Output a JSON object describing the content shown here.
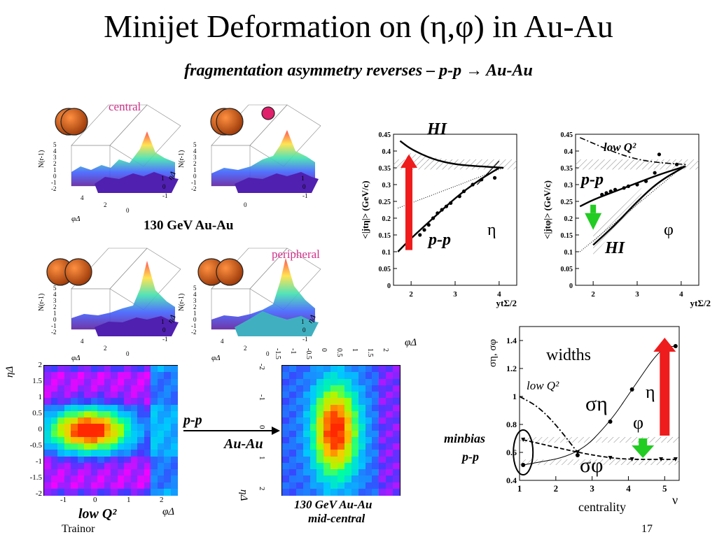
{
  "slide": {
    "title": "Minijet Deformation on (η,φ) in Au-Au",
    "subtitle": "fragmentation asymmetry reverses – p-p → Au-Au",
    "footer_left": "Trainor",
    "page_number": "17"
  },
  "surface_plots": {
    "central_tag": "central",
    "peripheral_tag": "peripheral",
    "caption": "130 GeV Au-Au",
    "z_label": "N(r-1)",
    "z_ticks": [
      "5",
      "4",
      "3",
      "2",
      "1",
      "0",
      "-1",
      "-2"
    ],
    "phi_ticks": [
      "4",
      "2",
      "0"
    ],
    "eta_ticks": [
      "1",
      "0",
      "-1"
    ],
    "phi_label": "φΔ",
    "eta_label": "ηΔ",
    "colors": {
      "central_tag": "#d0308a",
      "nucleus": "#c85010",
      "pink_dot": "#e0206a"
    }
  },
  "color_maps": {
    "left": {
      "y_label": "ηΔ",
      "x_label": "φΔ",
      "y_ticks": [
        "2",
        "1.5",
        "1",
        "0.5",
        "0",
        "-0.5",
        "-1",
        "-1.5",
        "-2"
      ],
      "x_ticks": [
        "-1",
        "0",
        "1",
        "2"
      ],
      "caption": "low Q²"
    },
    "right": {
      "x_label": "φΔ",
      "y_label": "ηΔ",
      "phi_ticks": [
        "-1.5",
        "-1",
        "-0.5",
        "0",
        "0.5",
        "1",
        "1.5",
        "2"
      ],
      "eta_ticks": [
        "-2",
        "-1",
        "0",
        "1",
        "2"
      ],
      "caption_line1": "130 GeV Au-Au",
      "caption_line2": "mid-central"
    },
    "arrow_top": "p-p",
    "arrow_bottom": "Au-Au"
  },
  "chart_data": [
    {
      "type": "line",
      "name": "eta-panel",
      "ylabel": "<|jtη|> (GeV/c)",
      "xlabel": "ytΣ/2",
      "xlim": [
        1.6,
        4.4
      ],
      "ylim": [
        0,
        0.45
      ],
      "x_ticks": [
        2,
        3,
        4
      ],
      "y_ticks": [
        0,
        0.05,
        0.1,
        0.15,
        0.2,
        0.25,
        0.3,
        0.35,
        0.4,
        0.45
      ],
      "annotations": [
        "HI",
        "p-p",
        "η"
      ],
      "points": {
        "x": [
          2.2,
          2.3,
          2.4,
          2.5,
          2.6,
          2.7,
          2.8,
          2.9,
          3.1,
          3.2,
          3.4,
          3.6,
          3.9
        ],
        "y": [
          0.15,
          0.165,
          0.18,
          0.2,
          0.215,
          0.225,
          0.235,
          0.245,
          0.265,
          0.28,
          0.3,
          0.315,
          0.32
        ]
      },
      "series": [
        {
          "name": "HI",
          "x": [
            1.75,
            2.0,
            2.5,
            3.0,
            3.5,
            4.1
          ],
          "y": [
            0.43,
            0.405,
            0.375,
            0.36,
            0.355,
            0.35
          ]
        },
        {
          "name": "p-p",
          "x": [
            1.7,
            2.0,
            2.5,
            3.0,
            3.5,
            4.0
          ],
          "y": [
            0.1,
            0.14,
            0.2,
            0.26,
            0.31,
            0.35
          ]
        }
      ],
      "colors": {
        "arrow": "#ee1c1c"
      }
    },
    {
      "type": "line",
      "name": "phi-panel",
      "ylabel": "<|jtφ|> (GeV/c)",
      "xlabel": "ytΣ/2",
      "xlim": [
        1.6,
        4.4
      ],
      "ylim": [
        0,
        0.45
      ],
      "x_ticks": [
        2,
        3,
        4
      ],
      "y_ticks": [
        0,
        0.05,
        0.1,
        0.15,
        0.2,
        0.25,
        0.3,
        0.35,
        0.4,
        0.45
      ],
      "annotations": [
        "low Q²",
        "p-p",
        "HI",
        "φ"
      ],
      "points": {
        "x": [
          2.2,
          2.3,
          2.4,
          2.5,
          2.7,
          2.8,
          3.0,
          3.2,
          3.4,
          3.5,
          3.9
        ],
        "y": [
          0.27,
          0.275,
          0.28,
          0.285,
          0.29,
          0.295,
          0.3,
          0.31,
          0.335,
          0.39,
          0.36
        ]
      },
      "series": [
        {
          "name": "p-p",
          "x": [
            1.7,
            2.0,
            2.5,
            3.0,
            3.5,
            4.1
          ],
          "y": [
            0.235,
            0.255,
            0.28,
            0.305,
            0.33,
            0.355
          ]
        },
        {
          "name": "HI",
          "x": [
            2.0,
            2.5,
            3.0,
            3.5,
            4.1
          ],
          "y": [
            0.12,
            0.18,
            0.25,
            0.31,
            0.355
          ]
        },
        {
          "name": "low Q²",
          "x": [
            1.7,
            2.5,
            3.0,
            3.5,
            4.1
          ],
          "y": [
            0.44,
            0.395,
            0.375,
            0.365,
            0.36
          ]
        }
      ],
      "colors": {
        "arrow": "#22cc22"
      }
    },
    {
      "type": "line",
      "name": "widths-panel",
      "ylabel": "ση, σφ",
      "xlabel": "centrality",
      "x_axis_symbol": "ν",
      "xlim": [
        1,
        5.4
      ],
      "ylim": [
        0.4,
        1.5
      ],
      "x_ticks": [
        1,
        2,
        3,
        4,
        5
      ],
      "y_ticks": [
        0.4,
        0.6,
        0.8,
        1,
        1.2,
        1.4
      ],
      "annotations": [
        "widths",
        "low Q²",
        "ση",
        "η",
        "φ",
        "σφ",
        "minbias",
        "p-p"
      ],
      "series": [
        {
          "name": "ση",
          "x": [
            1.1,
            2.6,
            3.5,
            4.1,
            4.9,
            5.3
          ],
          "y": [
            0.51,
            0.58,
            0.82,
            1.05,
            1.35,
            1.36
          ]
        },
        {
          "name": "σφ",
          "x": [
            1.1,
            2.6,
            3.5,
            4.1,
            4.9,
            5.3
          ],
          "y": [
            0.69,
            0.6,
            0.56,
            0.55,
            0.55,
            0.55
          ]
        },
        {
          "name": "low Q²",
          "x": [
            1.0,
            1.5,
            2.0,
            2.6
          ],
          "y": [
            1.0,
            0.93,
            0.8,
            0.6
          ]
        }
      ],
      "colors": {
        "arrow_up": "#ee1c1c",
        "arrow_down": "#22cc22"
      }
    }
  ]
}
